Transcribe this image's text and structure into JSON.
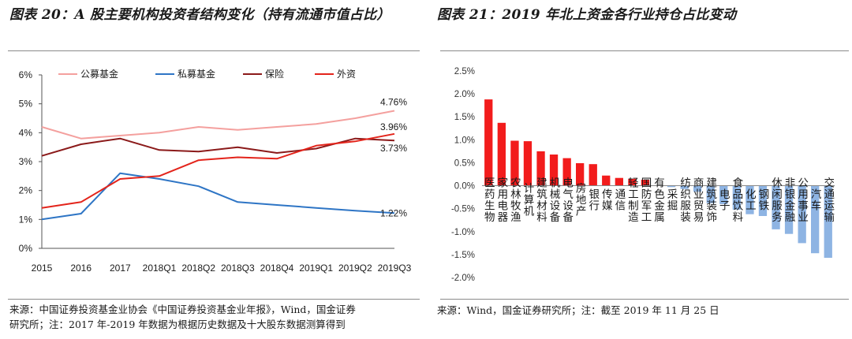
{
  "left": {
    "title": "图表 20：A 股主要机构投资者结构变化（持有流通市值占比）",
    "source_line1": "来源：中国证券投资基金业协会《中国证券投资基金业年报》，Wind，国金证券",
    "source_line2": "研究所；注：2017 年-2019 年数据为根据历史数据及十大股东数据测算得到"
  },
  "right": {
    "title": "图表 21：2019 年北上资金各行业持仓占比变动",
    "source": "来源：Wind，国金证券研究所；注：截至 2019 年 11 月 25 日"
  },
  "chart_data": [
    {
      "type": "line",
      "x": [
        "2015",
        "2016",
        "2017",
        "2018Q1",
        "2018Q2",
        "2018Q3",
        "2018Q4",
        "2019Q1",
        "2019Q2",
        "2019Q3"
      ],
      "series": [
        {
          "name": "公募基金",
          "color": "#f4a09e",
          "values": [
            4.2,
            3.8,
            3.9,
            4.0,
            4.2,
            4.1,
            4.2,
            4.3,
            4.5,
            4.76
          ]
        },
        {
          "name": "私募基金",
          "color": "#2e75c5",
          "values": [
            1.0,
            1.2,
            2.6,
            2.4,
            2.15,
            1.6,
            1.5,
            1.4,
            1.3,
            1.22
          ]
        },
        {
          "name": "保险",
          "color": "#8b1a1a",
          "values": [
            3.2,
            3.6,
            3.8,
            3.4,
            3.35,
            3.5,
            3.3,
            3.45,
            3.8,
            3.73
          ]
        },
        {
          "name": "外资",
          "color": "#e3241b",
          "values": [
            1.4,
            1.6,
            2.4,
            2.5,
            3.05,
            3.15,
            3.1,
            3.55,
            3.7,
            3.96
          ]
        }
      ],
      "ylim": [
        0,
        6
      ],
      "yticks": [
        "0%",
        "1%",
        "2%",
        "3%",
        "4%",
        "5%",
        "6%"
      ],
      "end_labels": [
        "4.76%",
        "1.22%",
        "3.73%",
        "3.96%"
      ],
      "legend": "top",
      "grid": false
    },
    {
      "type": "bar",
      "categories": [
        "医药生物",
        "家用电器",
        "农林牧渔",
        "计算机",
        "建筑材料",
        "机械设备",
        "电气设备",
        "房地产",
        "银行",
        "传媒",
        "通信",
        "轻工制造",
        "国防军工",
        "有色金属",
        "采掘",
        "纺织服装",
        "商业贸易",
        "建筑装饰",
        "电子",
        "食品饮料",
        "化工",
        "钢铁",
        "休闲服务",
        "非银金融",
        "公用事业",
        "汽车",
        "交通运输"
      ],
      "values": [
        1.88,
        1.37,
        0.98,
        0.97,
        0.75,
        0.68,
        0.6,
        0.49,
        0.47,
        0.22,
        0.17,
        0.15,
        0.13,
        0.01,
        -0.03,
        -0.07,
        -0.13,
        -0.38,
        -0.4,
        -0.52,
        -0.62,
        -0.66,
        -0.95,
        -1.05,
        -1.25,
        -1.47,
        -1.57
      ],
      "colors": {
        "positive": "#f21c1c",
        "negative": "#8eb4e3"
      },
      "ylim": [
        -2.0,
        2.5
      ],
      "yticks": [
        "-2.0%",
        "-1.5%",
        "-1.0%",
        "-0.5%",
        "0.0%",
        "0.5%",
        "1.0%",
        "1.5%",
        "2.0%",
        "2.5%"
      ],
      "grid": false
    }
  ]
}
